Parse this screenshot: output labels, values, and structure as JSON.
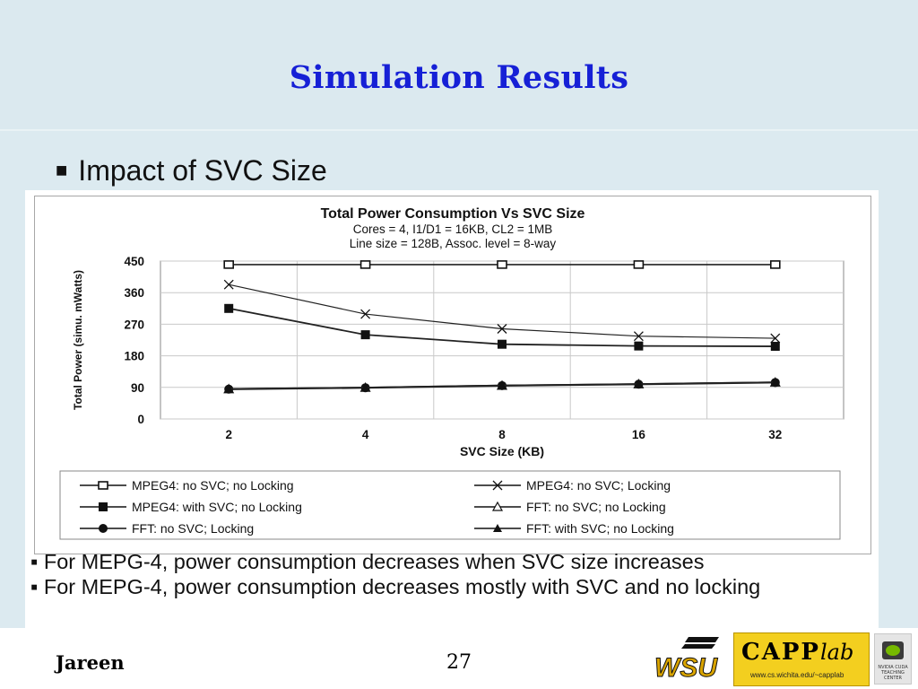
{
  "slide": {
    "title": "Simulation Results",
    "bullet": "Impact of SVC Size",
    "notes": [
      "▪ For MEPG-4, power consumption decreases when SVC size increases",
      "▪ For MEPG-4, power consumption decreases  mostly with SVC and no locking"
    ],
    "footer": {
      "author": "Jareen",
      "page_number": "27",
      "capp_brand": "CAPP",
      "capp_lab": "lab",
      "capp_url": "www.cs.wichita.edu/~capplab",
      "wsu_logo": "WSU",
      "nvidia_text": "NVIDIA CUDA TEACHING CENTER"
    }
  },
  "chart_data": {
    "type": "line",
    "title": "Total Power Consumption  Vs SVC  Size",
    "subtitle_lines": [
      "Cores = 4, I1/D1 = 16KB, CL2 = 1MB",
      "Line size = 128B, Assoc. level = 8-way"
    ],
    "xlabel": "SVC Size (KB)",
    "ylabel": "Total Power (simu. mWatts)",
    "categories": [
      "2",
      "4",
      "8",
      "16",
      "32"
    ],
    "ylim": [
      0,
      450
    ],
    "yticks": [
      "0",
      "90",
      "180",
      "270",
      "360",
      "450"
    ],
    "grid": true,
    "legend_position": "bottom",
    "series": [
      {
        "name": "MPEG4: no SVC; no Locking",
        "marker": "open-square",
        "values": [
          440,
          440,
          440,
          440,
          440
        ]
      },
      {
        "name": "MPEG4: no SVC; Locking",
        "marker": "x",
        "values": [
          383,
          299,
          257,
          236,
          230
        ]
      },
      {
        "name": "MPEG4: with SVC; no Locking",
        "marker": "filled-square",
        "values": [
          315,
          240,
          213,
          208,
          207
        ]
      },
      {
        "name": "FFT: no SVC; no Locking",
        "marker": "open-triangle",
        "values": [
          85,
          89,
          95,
          99,
          104
        ]
      },
      {
        "name": "FFT: no SVC; Locking",
        "marker": "filled-circle",
        "values": [
          85,
          89,
          95,
          99,
          104
        ]
      },
      {
        "name": "FFT: with SVC; no Locking",
        "marker": "filled-triangle",
        "values": [
          86,
          90,
          96,
          100,
          105
        ]
      }
    ]
  }
}
